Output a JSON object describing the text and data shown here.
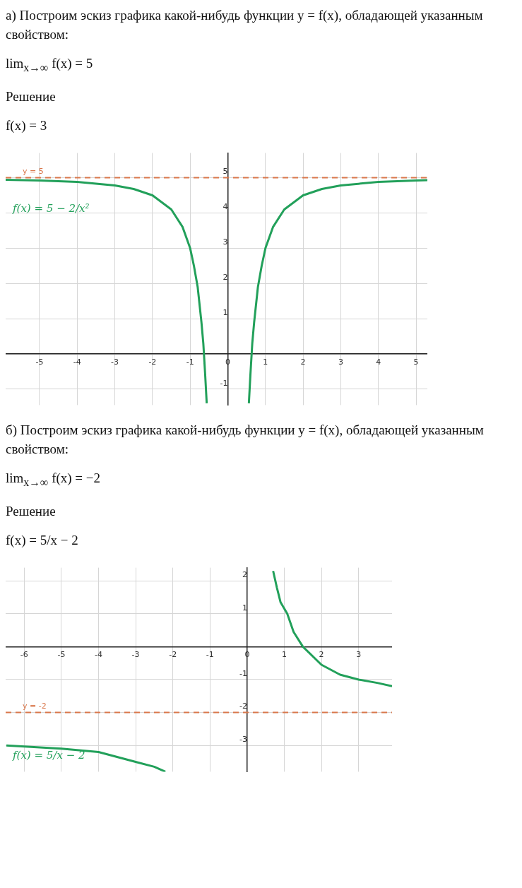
{
  "chart_data": [
    {
      "type": "line",
      "title": "а) Построим эскиз графика какой-нибудь функции y = f(x), обладающей указанным свойством:",
      "annotations": [
        "lim$_{x→∞}$ f(x) = 5",
        "Решение",
        "f(x) = 3"
      ],
      "x": [
        -5.9,
        -5,
        -4,
        -3,
        -2.5,
        -2,
        -1.5,
        -1.2,
        -1,
        -0.9,
        -0.8,
        -0.7,
        -0.65,
        -0.6,
        -0.56,
        0,
        0.56,
        0.6,
        0.65,
        0.7,
        0.8,
        0.9,
        1,
        1.2,
        1.5,
        2,
        2.5,
        3,
        4,
        5,
        5.3
      ],
      "series": [
        {
          "name": "f(x) = 5 − 2/x²",
          "color": "#22a05a",
          "values": [
            4.94,
            4.92,
            4.88,
            4.78,
            4.68,
            4.5,
            4.1,
            3.6,
            3,
            2.5,
            1.9,
            0.9,
            0.3,
            -0.6,
            -1.4,
            null,
            -1.4,
            -0.6,
            0.3,
            0.9,
            1.9,
            2.5,
            3,
            3.6,
            4.1,
            4.5,
            4.68,
            4.78,
            4.88,
            4.92,
            4.93
          ]
        }
      ],
      "xlim": [
        -5.9,
        5.3
      ],
      "ylim": [
        -1.45,
        5.7
      ],
      "xticks": [
        -5,
        -4,
        -3,
        -2,
        -1,
        0,
        1,
        2,
        3,
        4,
        5
      ],
      "yticks": [
        -1,
        {
          "value": 0,
          "label": null
        },
        1,
        2,
        3,
        4,
        5
      ],
      "grid": true,
      "legend": false,
      "ref_lines": [
        {
          "axis": "y",
          "value": 5,
          "label": "y = 5",
          "color": "#d9774b",
          "line_style": "dashed"
        }
      ]
    },
    {
      "type": "line",
      "title": "б) Построим эскиз графика какой-нибудь функции y = f(x), обладающей указанным свойством:",
      "annotations": [
        "lim$_{x→∞}$ f(x) = −2",
        "Решение",
        "f(x) = 5/x − 2"
      ],
      "x": [
        -6.48,
        -5,
        -4,
        -3,
        -2.5,
        -2.2,
        0,
        0.7,
        0.8,
        0.9,
        1.08,
        1.25,
        1.5,
        2,
        2.5,
        3,
        3.5,
        3.9
      ],
      "series": [
        {
          "name": "f(x) = 5/x − 2",
          "color": "#22a05a",
          "values": [
            -3,
            -3.1,
            -3.2,
            -3.5,
            -3.65,
            -3.8,
            null,
            2.3,
            1.8,
            1.35,
            1,
            0.45,
            0,
            -0.55,
            -0.85,
            -1,
            -1.1,
            -1.2
          ]
        }
      ],
      "xlim": [
        -6.5,
        3.9
      ],
      "ylim": [
        -3.8,
        2.4
      ],
      "xticks": [
        -6,
        -5,
        -4,
        -3,
        -2,
        -1,
        0,
        1,
        2,
        3
      ],
      "yticks": [
        -3,
        -2,
        -1,
        {
          "value": 0,
          "label": null
        },
        1,
        2
      ],
      "grid": true,
      "legend": false,
      "ref_lines": [
        {
          "axis": "y",
          "value": -2,
          "label": "y = -2",
          "color": "#d9774b",
          "line_style": "dashed"
        }
      ]
    }
  ]
}
